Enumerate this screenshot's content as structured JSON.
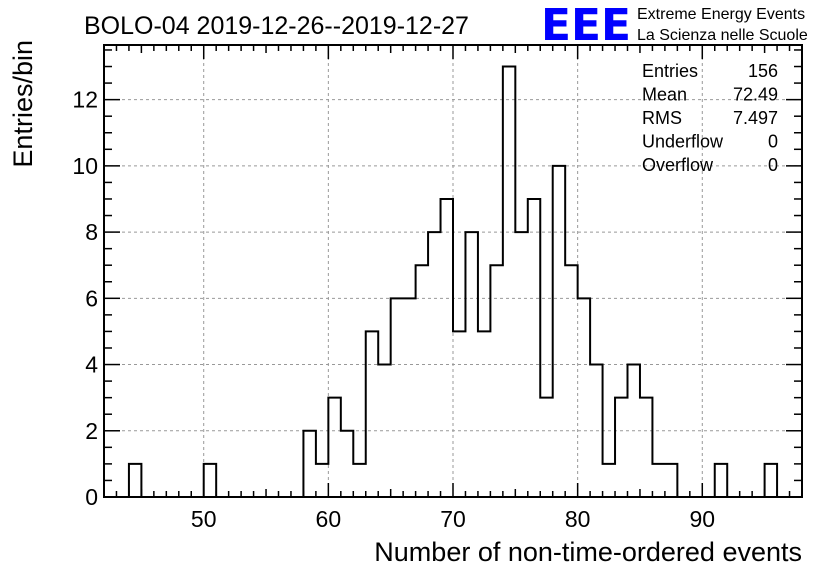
{
  "chart_data": {
    "type": "bar",
    "title": "BOLO-04 2019-12-26--2019-12-27",
    "xlabel": "Number of non-time-ordered events",
    "ylabel": "Entries/bin",
    "xlim": [
      42,
      98
    ],
    "ylim": [
      0,
      13.65
    ],
    "bin_width": 1,
    "x_ticks": [
      50,
      60,
      70,
      80,
      90
    ],
    "y_ticks": [
      0,
      2,
      4,
      6,
      8,
      10,
      12
    ],
    "grid": true,
    "histogram": {
      "bin_start": [
        44,
        50,
        58,
        59,
        60,
        61,
        62,
        63,
        64,
        65,
        66,
        67,
        68,
        69,
        70,
        71,
        72,
        73,
        74,
        75,
        76,
        77,
        78,
        79,
        80,
        81,
        82,
        83,
        84,
        85,
        86,
        87,
        91,
        95
      ],
      "counts": [
        1,
        1,
        2,
        1,
        3,
        2,
        1,
        5,
        4,
        6,
        6,
        7,
        8,
        9,
        5,
        8,
        5,
        7,
        13,
        8,
        9,
        3,
        10,
        7,
        6,
        4,
        1,
        3,
        4,
        3,
        1,
        1,
        1,
        1
      ]
    },
    "stats_box": {
      "rows": [
        {
          "label": "Entries",
          "value": "156"
        },
        {
          "label": "Mean",
          "value": "72.49"
        },
        {
          "label": "RMS",
          "value": "7.497"
        },
        {
          "label": "Underflow",
          "value": "0"
        },
        {
          "label": "Overflow",
          "value": "0"
        }
      ]
    }
  },
  "logo": {
    "mark": "EEE",
    "line1": "Extreme Energy Events",
    "line2": "La Scienza nelle Scuole",
    "color": "#0000ff"
  },
  "colors": {
    "frame": "#000000",
    "grid": "#999999",
    "histogram": "#000000"
  }
}
